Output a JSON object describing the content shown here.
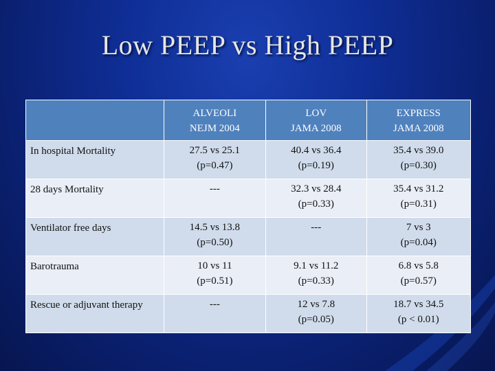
{
  "slide": {
    "title": "Low PEEP vs High PEEP"
  },
  "table": {
    "columns": [
      {
        "line1": "ALVEOLI",
        "line2": "NEJM 2004"
      },
      {
        "line1": "LOV",
        "line2": "JAMA 2008"
      },
      {
        "line1": "EXPRESS",
        "line2": "JAMA 2008"
      }
    ],
    "rows": [
      {
        "label": "In hospital Mortality",
        "cells": [
          {
            "line1": "27.5 vs 25.1",
            "line2": "(p=0.47)"
          },
          {
            "line1": "40.4 vs 36.4",
            "line2": "(p=0.19)"
          },
          {
            "line1": "35.4 vs 39.0",
            "line2": "(p=0.30)"
          }
        ]
      },
      {
        "label": "28 days Mortality",
        "cells": [
          {
            "line1": "---",
            "line2": ""
          },
          {
            "line1": "32.3 vs 28.4",
            "line2": "(p=0.33)"
          },
          {
            "line1": "35.4 vs 31.2",
            "line2": "(p=0.31)"
          }
        ]
      },
      {
        "label": "Ventilator free days",
        "cells": [
          {
            "line1": "14.5 vs 13.8",
            "line2": "(p=0.50)"
          },
          {
            "line1": "---",
            "line2": ""
          },
          {
            "line1": "7 vs 3",
            "line2": "(p=0.04)"
          }
        ]
      },
      {
        "label": "Barotrauma",
        "cells": [
          {
            "line1": "10 vs 11",
            "line2": "(p=0.51)"
          },
          {
            "line1": "9.1 vs 11.2",
            "line2": "(p=0.33)"
          },
          {
            "line1": "6.8 vs 5.8",
            "line2": "(p=0.57)"
          }
        ]
      },
      {
        "label": "Rescue or adjuvant therapy",
        "cells": [
          {
            "line1": "---",
            "line2": ""
          },
          {
            "line1": "12 vs 7.8",
            "line2": "(p=0.05)"
          },
          {
            "line1": "18.7 vs 34.5",
            "line2": "(p < 0.01)"
          }
        ]
      }
    ]
  },
  "colors": {
    "background": "#0f2e96",
    "header": "#4f81bd",
    "row_odd": "#d0dcec",
    "row_even": "#e9eef7"
  }
}
